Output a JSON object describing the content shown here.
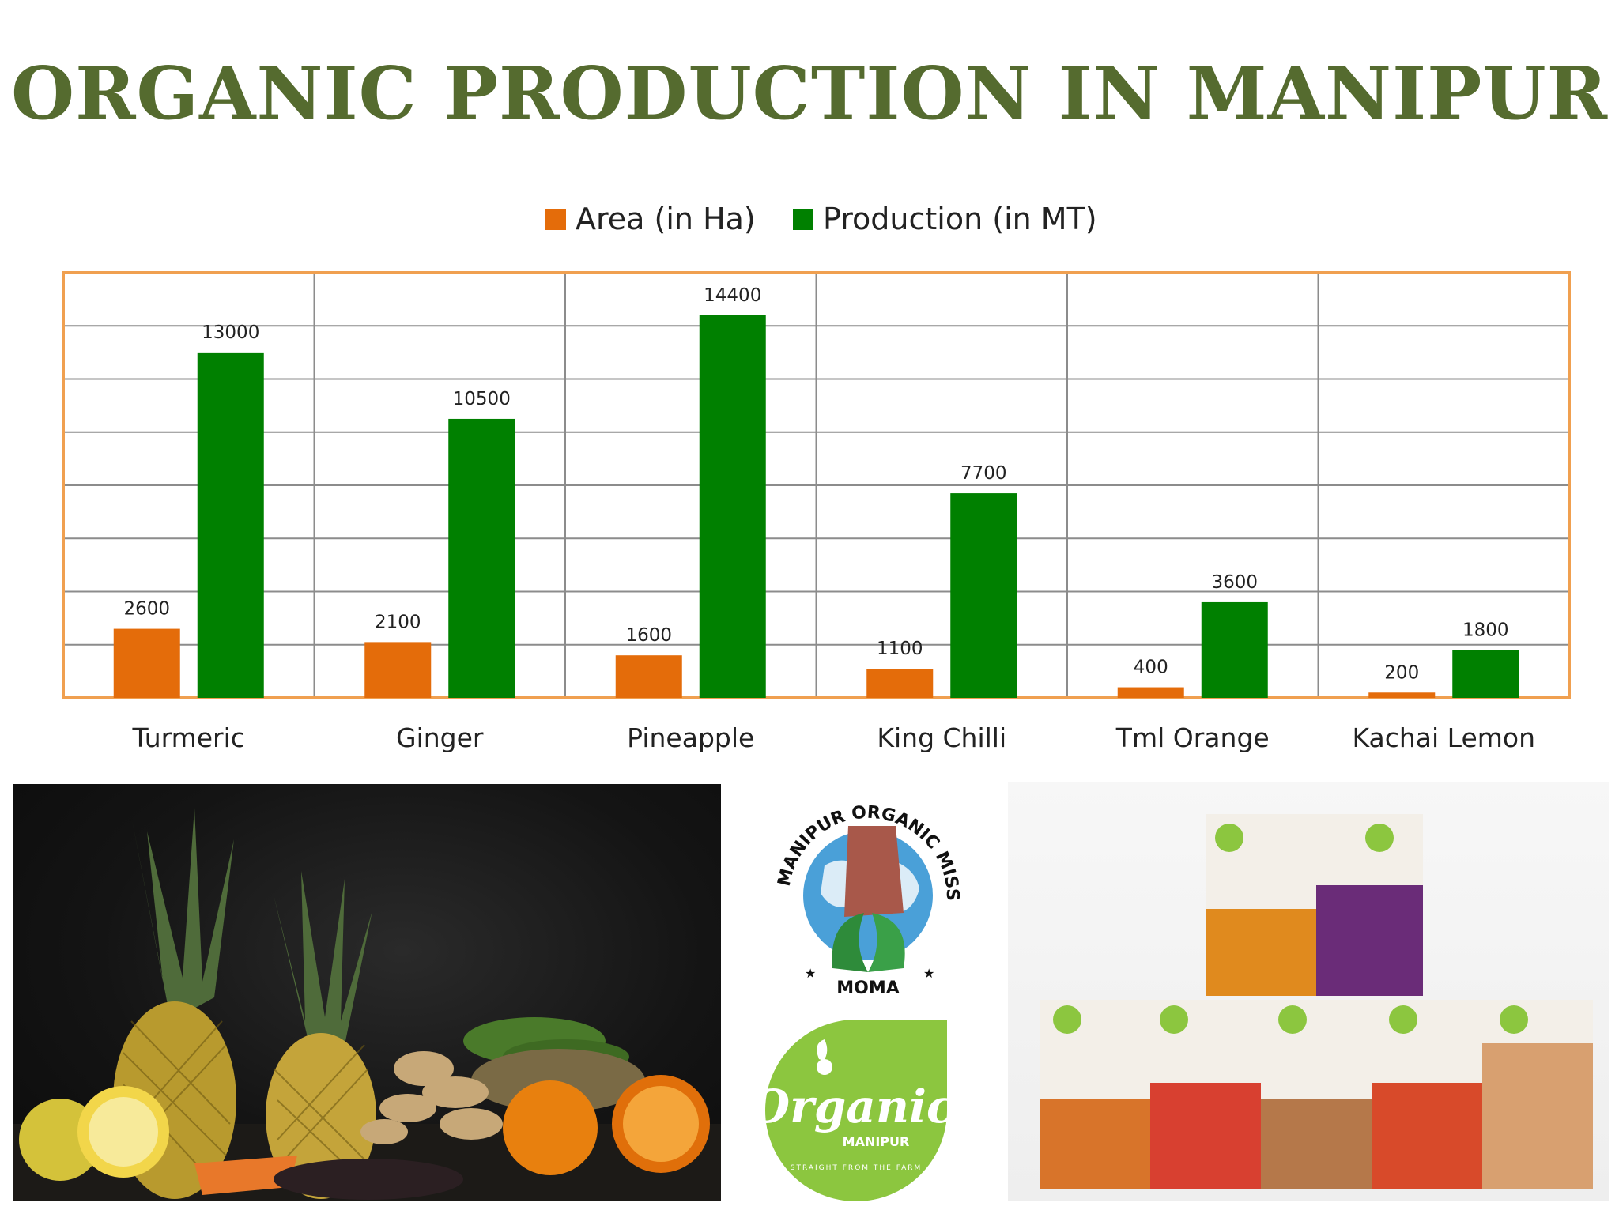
{
  "title": "ORGANIC PRODUCTION IN MANIPUR",
  "colors": {
    "title": "#556b2f",
    "area": "#e46c0a",
    "production": "#008000",
    "plot_border": "#f0a050",
    "grid": "#8c8c8c"
  },
  "chart_data": {
    "type": "bar",
    "title": "",
    "xlabel": "",
    "ylabel": "",
    "categories": [
      "Turmeric",
      "Ginger",
      "Pineapple",
      "King Chilli",
      "Tml Orange",
      "Kachai Lemon"
    ],
    "series": [
      {
        "name": "Area (in Ha)",
        "values": [
          2600,
          2100,
          1600,
          1100,
          400,
          200
        ]
      },
      {
        "name": "Production (in MT)",
        "values": [
          13000,
          10500,
          14400,
          7700,
          3600,
          1800
        ]
      }
    ],
    "ylim": [
      0,
      16000
    ],
    "ytick_step": 2000,
    "grid": true,
    "legend": "top-center",
    "data_labels": true
  },
  "images": {
    "produce_photo": "pineapples-ginger-citrus-photo",
    "moma_logo": {
      "name": "moma-logo",
      "ring_text": "MANIPUR ORGANIC MISSION AGENCY",
      "bottom_text": "MOMA"
    },
    "organic_logo": {
      "name": "organic-manipur-logo",
      "brand": "Organic",
      "sub": "MANIPUR",
      "tagline": "STRAIGHT FROM THE FARM"
    },
    "products_photo": "organic-product-packages-photo"
  }
}
